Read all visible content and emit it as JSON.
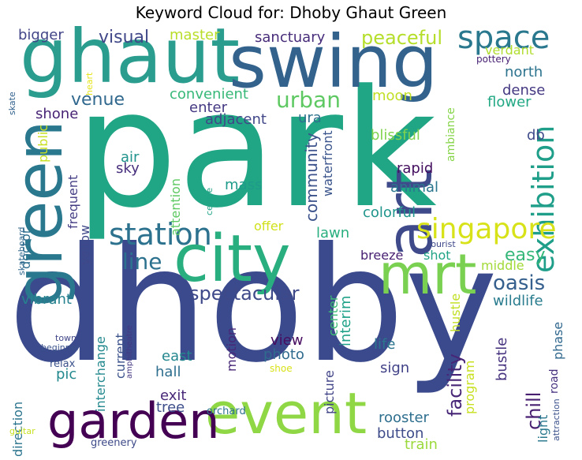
{
  "chart_data": {
    "type": "wordcloud",
    "title": "Keyword Cloud for: Dhoby Ghaut Green",
    "words": [
      {
        "text": "park",
        "weight": 100,
        "color": "#21a685"
      },
      {
        "text": "dhoby",
        "weight": 98,
        "color": "#3b4a8c"
      },
      {
        "text": "ghaut",
        "weight": 60,
        "color": "#2a9d8f"
      },
      {
        "text": "swing",
        "weight": 58,
        "color": "#33638d"
      },
      {
        "text": "green",
        "weight": 50,
        "color": "#2a788e"
      },
      {
        "text": "city",
        "weight": 50,
        "color": "#29af7f"
      },
      {
        "text": "art",
        "weight": 46,
        "color": "#3f4a8a"
      },
      {
        "text": "mrt",
        "weight": 45,
        "color": "#7ad151"
      },
      {
        "text": "event",
        "weight": 44,
        "color": "#8fd744"
      },
      {
        "text": "garden",
        "weight": 40,
        "color": "#440154"
      },
      {
        "text": "space",
        "weight": 26,
        "color": "#2a788e"
      },
      {
        "text": "exhibition",
        "weight": 24,
        "color": "#1f9e89"
      },
      {
        "text": "station",
        "weight": 22,
        "color": "#2c728e"
      },
      {
        "text": "singapore",
        "weight": 22,
        "color": "#d8e219"
      },
      {
        "text": "urban",
        "weight": 17,
        "color": "#5ec962"
      },
      {
        "text": "oasis",
        "weight": 17,
        "color": "#355f8d"
      },
      {
        "text": "spectacular",
        "weight": 16,
        "color": "#3e4989"
      },
      {
        "text": "line",
        "weight": 16,
        "color": "#2c728e"
      },
      {
        "text": "facility",
        "weight": 16,
        "color": "#482677"
      },
      {
        "text": "peaceful",
        "weight": 14,
        "color": "#b5de2b"
      },
      {
        "text": "visual",
        "weight": 13,
        "color": "#3f4788"
      },
      {
        "text": "venue",
        "weight": 13,
        "color": "#31688e"
      },
      {
        "text": "community",
        "weight": 13,
        "color": "#3b528b"
      },
      {
        "text": "easy",
        "weight": 13,
        "color": "#35b779"
      },
      {
        "text": "chill",
        "weight": 13,
        "color": "#481f70"
      },
      {
        "text": "interim",
        "weight": 11,
        "color": "#1fa188"
      },
      {
        "text": "vibrant",
        "weight": 11,
        "color": "#26828e"
      },
      {
        "text": "wildlife",
        "weight": 11,
        "color": "#287c8e"
      },
      {
        "text": "hustle",
        "weight": 11,
        "color": "#c2df23"
      },
      {
        "text": "bustle",
        "weight": 11,
        "color": "#46327e"
      },
      {
        "text": "rooster",
        "weight": 11,
        "color": "#2e6f8e"
      },
      {
        "text": "train",
        "weight": 11,
        "color": "#9bd93c"
      },
      {
        "text": "button",
        "weight": 11,
        "color": "#3e4c8a"
      },
      {
        "text": "bigger",
        "weight": 10,
        "color": "#414487"
      },
      {
        "text": "master",
        "weight": 10,
        "color": "#b8de29"
      },
      {
        "text": "sanctuary",
        "weight": 10,
        "color": "#472c7a"
      },
      {
        "text": "convenient",
        "weight": 10,
        "color": "#37b878"
      },
      {
        "text": "moon",
        "weight": 10,
        "color": "#c0df25"
      },
      {
        "text": "dense",
        "weight": 10,
        "color": "#453882"
      },
      {
        "text": "north",
        "weight": 10,
        "color": "#2c738e"
      },
      {
        "text": "flower",
        "weight": 10,
        "color": "#22a884"
      },
      {
        "text": "verdant",
        "weight": 10,
        "color": "#b0dd2f"
      },
      {
        "text": "shone",
        "weight": 10,
        "color": "#482475"
      },
      {
        "text": "enter",
        "weight": 10,
        "color": "#443a83"
      },
      {
        "text": "adjacent",
        "weight": 10,
        "color": "#404688"
      },
      {
        "text": "ura",
        "weight": 10,
        "color": "#2d708e"
      },
      {
        "text": "blissful",
        "weight": 10,
        "color": "#7fd34e"
      },
      {
        "text": "db",
        "weight": 10,
        "color": "#3e4a89"
      },
      {
        "text": "public",
        "weight": 10,
        "color": "#c8e020"
      },
      {
        "text": "air",
        "weight": 10,
        "color": "#20938c"
      },
      {
        "text": "sky",
        "weight": 10,
        "color": "#472f7d"
      },
      {
        "text": "mass",
        "weight": 10,
        "color": "#1e9b8a"
      },
      {
        "text": "rapid",
        "weight": 10,
        "color": "#440f5f"
      },
      {
        "text": "animal",
        "weight": 10,
        "color": "#2a768e"
      },
      {
        "text": "colorful",
        "weight": 10,
        "color": "#1f958b"
      },
      {
        "text": "waterfront",
        "weight": 10,
        "color": "#3a548c"
      },
      {
        "text": "lawn",
        "weight": 10,
        "color": "#29af7f"
      },
      {
        "text": "offer",
        "weight": 10,
        "color": "#d0e11c"
      },
      {
        "text": "breeze",
        "weight": 10,
        "color": "#482173"
      },
      {
        "text": "shot",
        "weight": 10,
        "color": "#20a386"
      },
      {
        "text": "middle",
        "weight": 10,
        "color": "#a2da37"
      },
      {
        "text": "center",
        "weight": 10,
        "color": "#3dbc74"
      },
      {
        "text": "view",
        "weight": 10,
        "color": "#470d60"
      },
      {
        "text": "photo",
        "weight": 10,
        "color": "#2f6b8e"
      },
      {
        "text": "life",
        "weight": 10,
        "color": "#2b758e"
      },
      {
        "text": "sign",
        "weight": 10,
        "color": "#414287"
      },
      {
        "text": "east",
        "weight": 10,
        "color": "#24878e"
      },
      {
        "text": "hall",
        "weight": 10,
        "color": "#2e6e8e"
      },
      {
        "text": "exit",
        "weight": 10,
        "color": "#482878"
      },
      {
        "text": "tree",
        "weight": 10,
        "color": "#3d4e8a"
      },
      {
        "text": "pic",
        "weight": 10,
        "color": "#23898e"
      },
      {
        "text": "relax",
        "weight": 10,
        "color": "#3b528b"
      },
      {
        "text": "direction",
        "weight": 10,
        "color": "#2b748e"
      },
      {
        "text": "frequent",
        "weight": 10,
        "color": "#433d84"
      },
      {
        "text": "yellow",
        "weight": 10,
        "color": "#3f4889"
      },
      {
        "text": "doctor",
        "weight": 10,
        "color": "#2e6e8e"
      },
      {
        "text": "attention",
        "weight": 10,
        "color": "#5ec962"
      },
      {
        "text": "interchange",
        "weight": 10,
        "color": "#23898e"
      },
      {
        "text": "current",
        "weight": 10,
        "color": "#3b528b"
      },
      {
        "text": "motion",
        "weight": 10,
        "color": "#482878"
      },
      {
        "text": "picture",
        "weight": 10,
        "color": "#414487"
      },
      {
        "text": "program",
        "weight": 10,
        "color": "#c8e020"
      },
      {
        "text": "phase",
        "weight": 10,
        "color": "#31688e"
      },
      {
        "text": "light",
        "weight": 10,
        "color": "#2a788e"
      },
      {
        "text": "road",
        "weight": 10,
        "color": "#46307e"
      },
      {
        "text": "ambiance",
        "weight": 10,
        "color": "#86d549"
      },
      {
        "text": "orchard",
        "weight": 9,
        "color": "#2c728e"
      },
      {
        "text": "greenery",
        "weight": 9,
        "color": "#3e4a89"
      },
      {
        "text": "pottery",
        "weight": 9,
        "color": "#482173"
      },
      {
        "text": "centre",
        "weight": 8,
        "color": "#20a386"
      },
      {
        "text": "skate",
        "weight": 8,
        "color": "#33638d"
      },
      {
        "text": "skateboard",
        "weight": 8,
        "color": "#31688e"
      },
      {
        "text": "heart",
        "weight": 8,
        "color": "#e5e419"
      },
      {
        "text": "tourist",
        "weight": 8,
        "color": "#3e4989"
      },
      {
        "text": "attraction",
        "weight": 8,
        "color": "#3b528b"
      },
      {
        "text": "town",
        "weight": 8,
        "color": "#404688"
      },
      {
        "text": "beginner",
        "weight": 8,
        "color": "#3b528b"
      },
      {
        "text": "amphitheatre",
        "weight": 8,
        "color": "#443983"
      },
      {
        "text": "shoe",
        "weight": 8,
        "color": "#d8e219"
      },
      {
        "text": "guitar",
        "weight": 8,
        "color": "#c8e020"
      }
    ]
  }
}
